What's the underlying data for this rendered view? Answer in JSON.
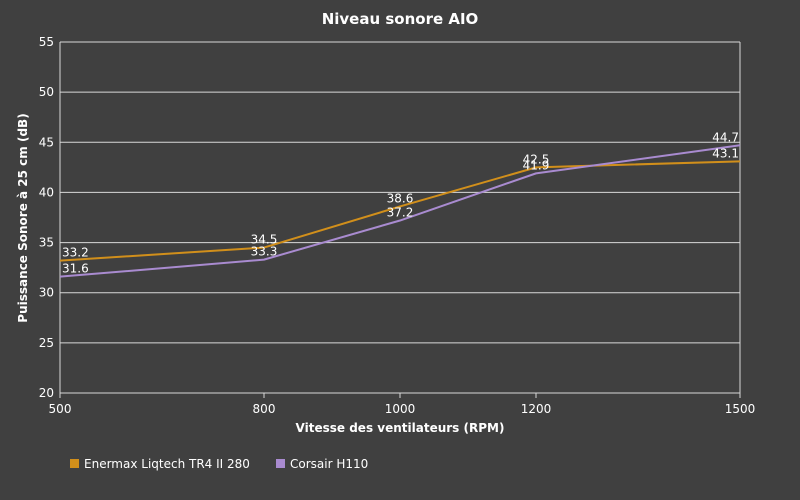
{
  "chart_data": {
    "type": "line",
    "title": "Niveau sonore AIO",
    "xlabel": "Vitesse des ventilateurs (RPM)",
    "ylabel": "Puissance Sonore à 25 cm (dB)",
    "x": [
      500,
      800,
      1000,
      1200,
      1500
    ],
    "x_tick_labels": [
      "500",
      "800",
      "1000",
      "1200",
      "1500"
    ],
    "xlim": [
      500,
      1500
    ],
    "ylim": [
      20,
      55
    ],
    "y_ticks": [
      20,
      25,
      30,
      35,
      40,
      45,
      50,
      55
    ],
    "grid": true,
    "legend_position": "bottom-left",
    "series": [
      {
        "name": "Enermax Liqtech TR4 II 280",
        "color": "#d18f1b",
        "values": [
          33.2,
          34.5,
          38.6,
          42.5,
          43.1
        ],
        "labels": [
          "33.2",
          "34.5",
          "38.6",
          "42.5",
          "43.1"
        ]
      },
      {
        "name": "Corsair H110",
        "color": "#a98bd0",
        "values": [
          31.6,
          33.3,
          37.2,
          41.9,
          44.7
        ],
        "labels": [
          "31.6",
          "33.3",
          "37.2",
          "41.9",
          "44.7"
        ]
      }
    ]
  }
}
